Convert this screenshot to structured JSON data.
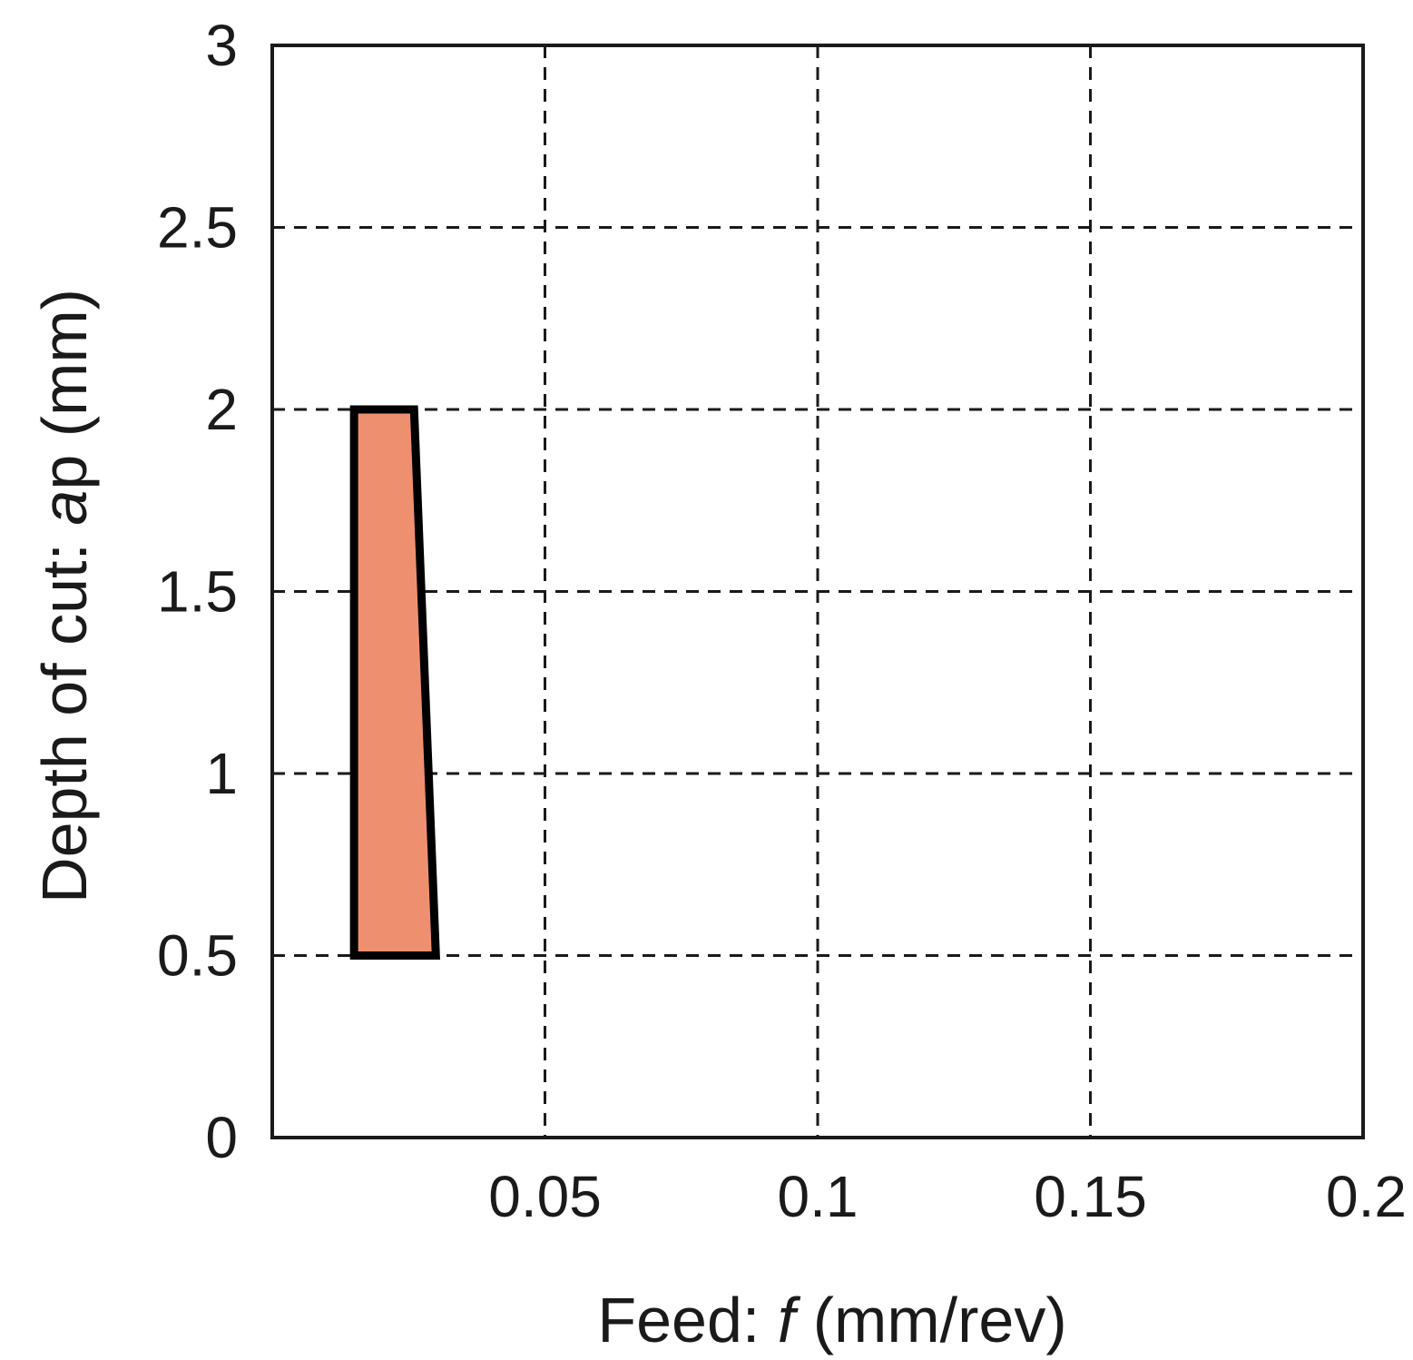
{
  "chart_data": {
    "type": "area",
    "title": "",
    "xlabel": {
      "prefix": "Feed: ",
      "variable": "f",
      "suffix": " (mm/rev)"
    },
    "ylabel": {
      "prefix": "Depth of cut: ",
      "variable": "a",
      "suffix": "p (mm)"
    },
    "xlim": [
      0,
      0.2
    ],
    "ylim": [
      0,
      3
    ],
    "xticks": [
      0.05,
      0.1,
      0.15,
      0.2
    ],
    "xtick_labels": [
      "0.05",
      "0.1",
      "0.15",
      "0.2"
    ],
    "yticks": [
      0,
      0.5,
      1,
      1.5,
      2,
      2.5,
      3
    ],
    "ytick_labels": [
      "0",
      "0.5",
      "1",
      "1.5",
      "2",
      "2.5",
      "3"
    ],
    "grid": true,
    "grid_style": "dashed",
    "regions": [
      {
        "points": [
          [
            0.015,
            0.5
          ],
          [
            0.015,
            2.0
          ],
          [
            0.026,
            2.0
          ],
          [
            0.03,
            0.5
          ]
        ],
        "fill": "#ee9070",
        "stroke": "#000000"
      }
    ]
  },
  "colors": {
    "axis": "#1a1a1a",
    "grid": "#1a1a1a",
    "text": "#1a1a1a",
    "region_fill": "#ee9070"
  }
}
